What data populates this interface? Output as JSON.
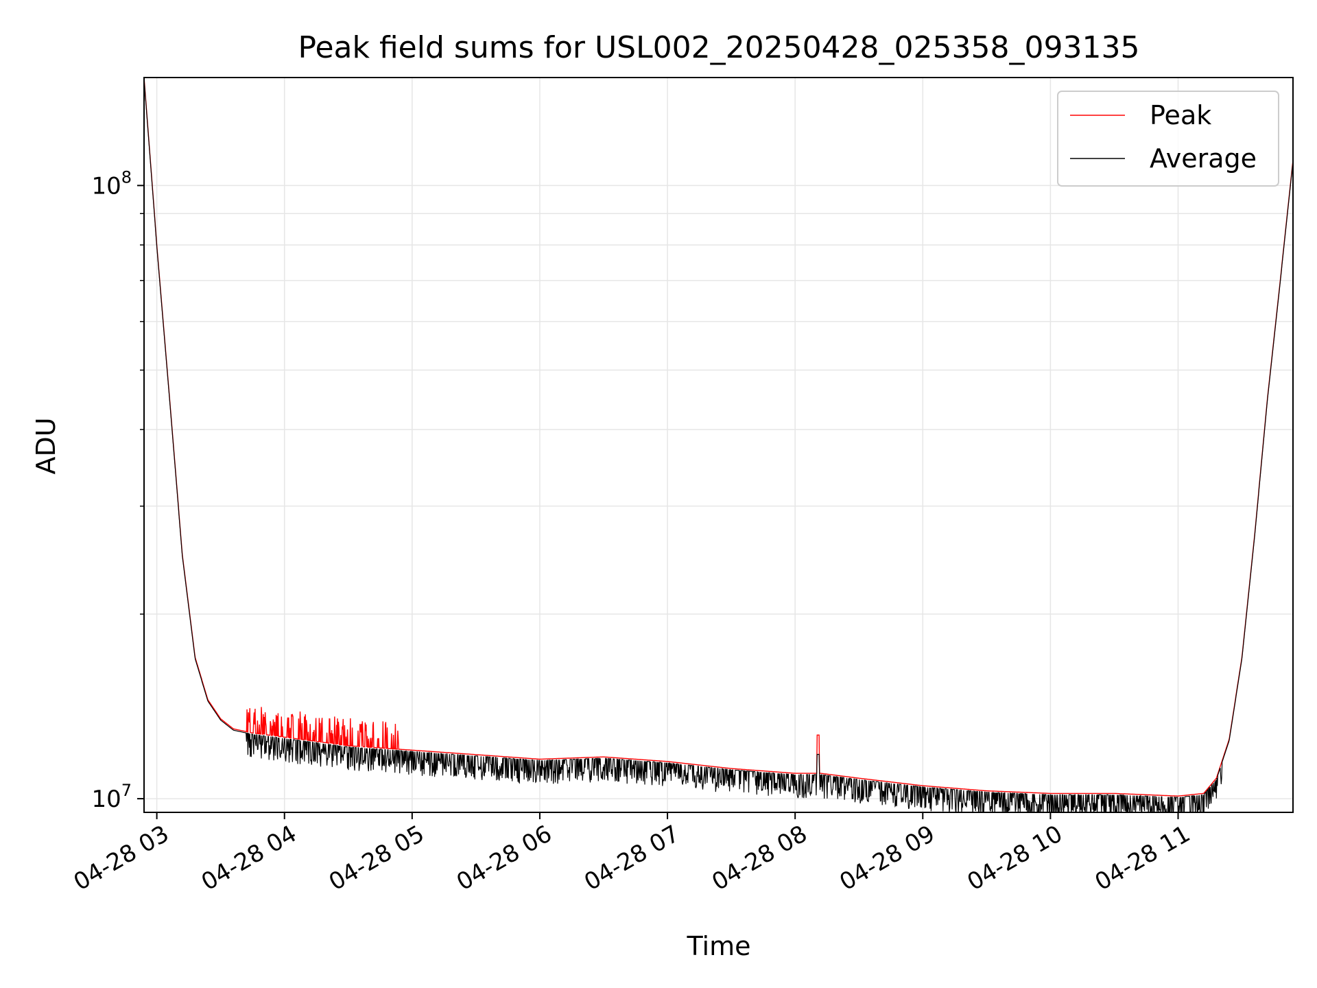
{
  "chart_data": {
    "type": "line",
    "title": "Peak field sums for USL002_20250428_025358_093135",
    "xlabel": "Time",
    "ylabel": "ADU",
    "yscale": "log",
    "ylim": [
      9500000,
      150000000
    ],
    "xlim_hours": [
      2.9,
      11.9
    ],
    "x_ticks": [
      {
        "hour": 3,
        "label": "04-28 03"
      },
      {
        "hour": 4,
        "label": "04-28 04"
      },
      {
        "hour": 5,
        "label": "04-28 05"
      },
      {
        "hour": 6,
        "label": "04-28 06"
      },
      {
        "hour": 7,
        "label": "04-28 07"
      },
      {
        "hour": 8,
        "label": "04-28 08"
      },
      {
        "hour": 9,
        "label": "04-28 09"
      },
      {
        "hour": 10,
        "label": "04-28 10"
      },
      {
        "hour": 11,
        "label": "04-28 11"
      }
    ],
    "y_ticks": [
      {
        "value": 10000000,
        "base": "10",
        "exp": "7"
      },
      {
        "value": 100000000,
        "base": "10",
        "exp": "8"
      }
    ],
    "grid": true,
    "legend_position": "top-right",
    "series": [
      {
        "name": "Peak",
        "color": "#ff0000"
      },
      {
        "name": "Average",
        "color": "#000000"
      }
    ],
    "baseline_hours": [
      2.9,
      3.0,
      3.1,
      3.2,
      3.3,
      3.4,
      3.5,
      3.6,
      3.75,
      4.0,
      4.5,
      5.0,
      5.5,
      6.0,
      6.5,
      7.0,
      7.5,
      8.0,
      8.2,
      8.5,
      9.0,
      9.5,
      10.0,
      10.5,
      11.0,
      11.2,
      11.3,
      11.4,
      11.5,
      11.6,
      11.7,
      11.8,
      11.9
    ],
    "baseline_values": [
      150000000,
      80000000,
      45000000,
      25000000,
      17000000,
      14500000,
      13500000,
      13000000,
      12800000,
      12600000,
      12200000,
      12000000,
      11800000,
      11600000,
      11700000,
      11500000,
      11200000,
      11000000,
      11000000,
      10800000,
      10500000,
      10300000,
      10200000,
      10200000,
      10100000,
      10200000,
      10800000,
      12500000,
      17000000,
      27000000,
      45000000,
      70000000,
      110000000
    ],
    "spike": {
      "hour": 8.18,
      "value": 12700000
    },
    "noise_region_hours": [
      3.7,
      11.35
    ],
    "noise_depth_fraction": [
      0.02,
      0.09
    ]
  }
}
